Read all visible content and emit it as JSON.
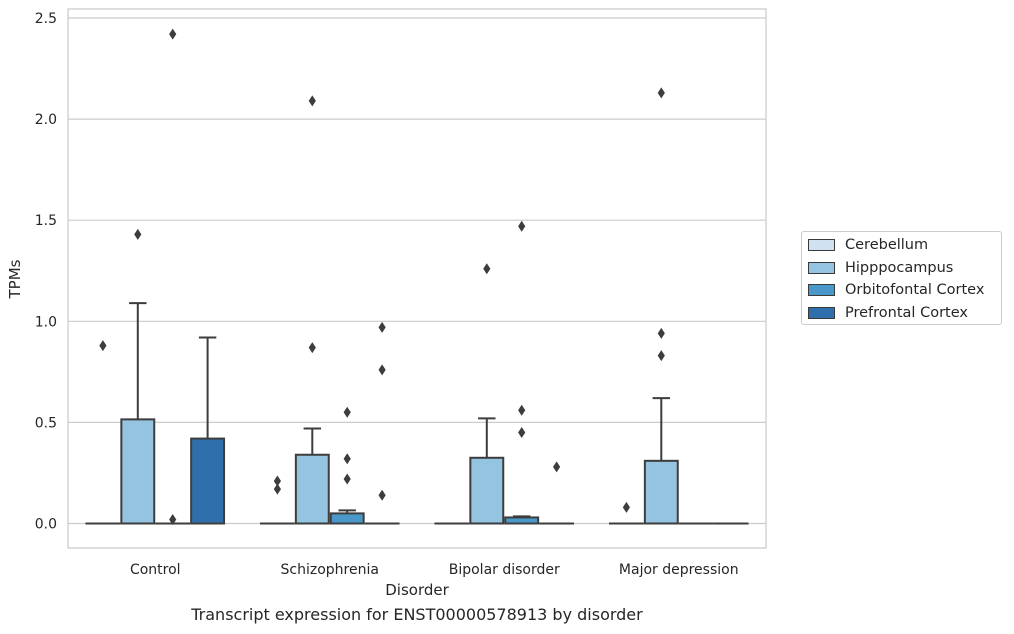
{
  "chart_data": {
    "type": "box",
    "caption": "Transcript expression for ENST00000578913 by disorder",
    "xlabel": "Disorder",
    "ylabel": "TPMs",
    "ylim": [
      -0.12,
      2.55
    ],
    "yticks": [
      0.0,
      0.5,
      1.0,
      1.5,
      2.0,
      2.5
    ],
    "ytick_labels": [
      "0.0",
      "0.5",
      "1.0",
      "1.5",
      "2.0",
      "2.5"
    ],
    "categories": [
      "Control",
      "Schizophrenia",
      "Bipolar disorder",
      "Major depression"
    ],
    "grid": true,
    "legend_position": "right",
    "series": [
      {
        "name": "Cerebellum",
        "color": "#d0e1f2",
        "boxes": [
          {
            "q1": 0,
            "median": 0,
            "q3": 0,
            "whisker_low": 0,
            "whisker_high": 0,
            "outliers": [
              0.88
            ]
          },
          {
            "q1": 0,
            "median": 0,
            "q3": 0,
            "whisker_low": 0,
            "whisker_high": 0,
            "outliers": [
              0.21,
              0.17
            ]
          },
          {
            "q1": 0,
            "median": 0,
            "q3": 0,
            "whisker_low": 0,
            "whisker_high": 0,
            "outliers": []
          },
          {
            "q1": 0,
            "median": 0,
            "q3": 0,
            "whisker_low": 0,
            "whisker_high": 0,
            "outliers": [
              0.08
            ]
          }
        ]
      },
      {
        "name": "Hipppocampus",
        "color": "#94c4df",
        "boxes": [
          {
            "q1": 0,
            "median": 0,
            "q3": 0.515,
            "whisker_low": 0,
            "whisker_high": 1.09,
            "outliers": [
              1.43
            ]
          },
          {
            "q1": 0,
            "median": 0,
            "q3": 0.34,
            "whisker_low": 0,
            "whisker_high": 0.47,
            "outliers": [
              0.87,
              2.09
            ]
          },
          {
            "q1": 0,
            "median": 0,
            "q3": 0.325,
            "whisker_low": 0,
            "whisker_high": 0.52,
            "outliers": [
              1.26
            ]
          },
          {
            "q1": 0,
            "median": 0,
            "q3": 0.31,
            "whisker_low": 0,
            "whisker_high": 0.62,
            "outliers": [
              0.83,
              0.94,
              2.13
            ]
          }
        ]
      },
      {
        "name": "Orbitofontal Cortex",
        "color": "#4a98c9",
        "boxes": [
          {
            "q1": 0,
            "median": 0,
            "q3": 0,
            "whisker_low": 0,
            "whisker_high": 0,
            "outliers": [
              0.02,
              2.42
            ]
          },
          {
            "q1": 0,
            "median": 0,
            "q3": 0.05,
            "whisker_low": 0,
            "whisker_high": 0.065,
            "outliers": [
              0.22,
              0.32,
              0.55
            ]
          },
          {
            "q1": 0,
            "median": 0,
            "q3": 0.03,
            "whisker_low": 0,
            "whisker_high": 0.035,
            "outliers": [
              0.45,
              0.56,
              1.47
            ]
          },
          {
            "q1": 0,
            "median": 0,
            "q3": 0,
            "whisker_low": 0,
            "whisker_high": 0,
            "outliers": []
          }
        ]
      },
      {
        "name": "Prefrontal Cortex",
        "color": "#2e6fac",
        "boxes": [
          {
            "q1": 0,
            "median": 0,
            "q3": 0.42,
            "whisker_low": 0,
            "whisker_high": 0.92,
            "outliers": []
          },
          {
            "q1": 0,
            "median": 0,
            "q3": 0,
            "whisker_low": 0,
            "whisker_high": 0,
            "outliers": [
              0.14,
              0.76,
              0.97
            ]
          },
          {
            "q1": 0,
            "median": 0,
            "q3": 0,
            "whisker_low": 0,
            "whisker_high": 0,
            "outliers": [
              0.28
            ]
          },
          {
            "q1": 0,
            "median": 0,
            "q3": 0,
            "whisker_low": 0,
            "whisker_high": 0,
            "outliers": []
          }
        ]
      }
    ]
  }
}
